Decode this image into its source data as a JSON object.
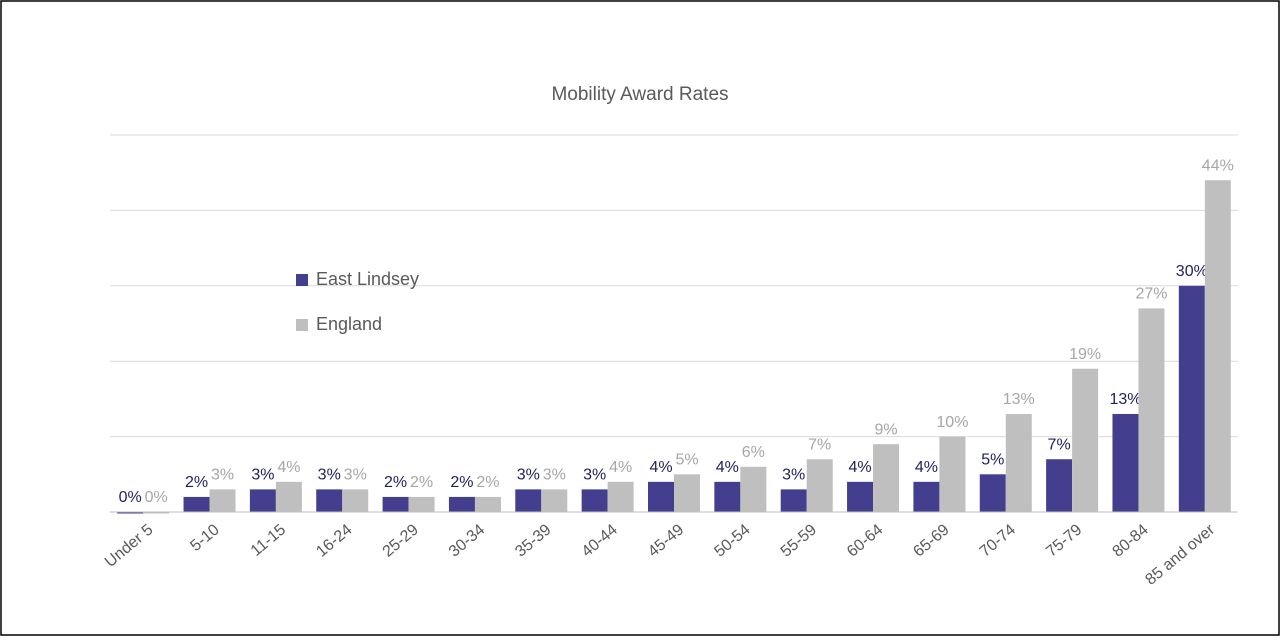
{
  "chart_data": {
    "type": "bar",
    "title": "Mobility Award Rates",
    "categories": [
      "Under 5",
      "5-10",
      "11-15",
      "16-24",
      "25-29",
      "30-34",
      "35-39",
      "40-44",
      "45-49",
      "50-54",
      "55-59",
      "60-64",
      "65-69",
      "70-74",
      "75-79",
      "80-84",
      "85 and over"
    ],
    "series": [
      {
        "name": "East Lindsey",
        "color": "#433e8e",
        "label_color": "#1f1f5c",
        "values": [
          0,
          2,
          3,
          3,
          2,
          2,
          3,
          3,
          4,
          4,
          3,
          4,
          4,
          5,
          7,
          13,
          30
        ],
        "value_labels": [
          "0%",
          "2%",
          "3%",
          "3%",
          "2%",
          "2%",
          "3%",
          "3%",
          "4%",
          "4%",
          "3%",
          "4%",
          "4%",
          "5%",
          "7%",
          "13%",
          "30%"
        ]
      },
      {
        "name": "England",
        "color": "#bfbfbf",
        "label_color": "#a6a6a6",
        "values": [
          0,
          3,
          4,
          3,
          2,
          2,
          3,
          4,
          5,
          6,
          7,
          9,
          10,
          13,
          19,
          27,
          44
        ],
        "value_labels": [
          "0%",
          "3%",
          "4%",
          "3%",
          "2%",
          "2%",
          "3%",
          "4%",
          "5%",
          "6%",
          "7%",
          "9%",
          "10%",
          "13%",
          "19%",
          "27%",
          "44%"
        ]
      }
    ],
    "ylim": [
      0,
      50
    ],
    "yticks": [
      0,
      10,
      20,
      30,
      40,
      50
    ],
    "grid": true
  }
}
